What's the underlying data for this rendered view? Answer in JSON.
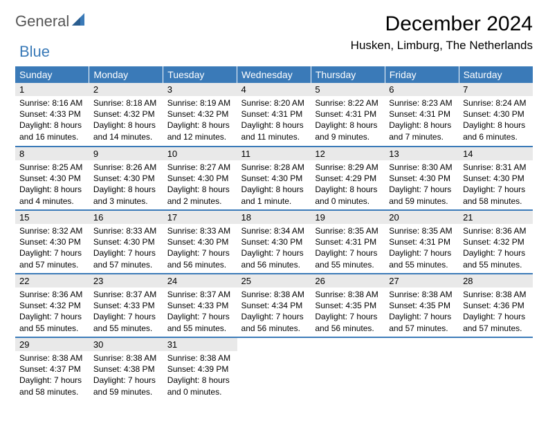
{
  "brand": {
    "part1": "General",
    "part2": "Blue"
  },
  "title": "December 2024",
  "location": "Husken, Limburg, The Netherlands",
  "colors": {
    "header_bg": "#3a7ab8",
    "header_fg": "#ffffff",
    "daynum_bg": "#e9e9e9",
    "border": "#3a7ab8",
    "page_bg": "#ffffff",
    "text": "#000000",
    "logo_gray": "#555555",
    "logo_blue": "#3a7ab8"
  },
  "typography": {
    "title_fontsize": 30,
    "location_fontsize": 17,
    "weekday_fontsize": 14,
    "daynum_fontsize": 13,
    "body_fontsize": 12
  },
  "weekdays": [
    "Sunday",
    "Monday",
    "Tuesday",
    "Wednesday",
    "Thursday",
    "Friday",
    "Saturday"
  ],
  "weeks": [
    [
      {
        "n": "1",
        "sunrise": "8:16 AM",
        "sunset": "4:33 PM",
        "dl": "8 hours and 16 minutes."
      },
      {
        "n": "2",
        "sunrise": "8:18 AM",
        "sunset": "4:32 PM",
        "dl": "8 hours and 14 minutes."
      },
      {
        "n": "3",
        "sunrise": "8:19 AM",
        "sunset": "4:32 PM",
        "dl": "8 hours and 12 minutes."
      },
      {
        "n": "4",
        "sunrise": "8:20 AM",
        "sunset": "4:31 PM",
        "dl": "8 hours and 11 minutes."
      },
      {
        "n": "5",
        "sunrise": "8:22 AM",
        "sunset": "4:31 PM",
        "dl": "8 hours and 9 minutes."
      },
      {
        "n": "6",
        "sunrise": "8:23 AM",
        "sunset": "4:31 PM",
        "dl": "8 hours and 7 minutes."
      },
      {
        "n": "7",
        "sunrise": "8:24 AM",
        "sunset": "4:30 PM",
        "dl": "8 hours and 6 minutes."
      }
    ],
    [
      {
        "n": "8",
        "sunrise": "8:25 AM",
        "sunset": "4:30 PM",
        "dl": "8 hours and 4 minutes."
      },
      {
        "n": "9",
        "sunrise": "8:26 AM",
        "sunset": "4:30 PM",
        "dl": "8 hours and 3 minutes."
      },
      {
        "n": "10",
        "sunrise": "8:27 AM",
        "sunset": "4:30 PM",
        "dl": "8 hours and 2 minutes."
      },
      {
        "n": "11",
        "sunrise": "8:28 AM",
        "sunset": "4:30 PM",
        "dl": "8 hours and 1 minute."
      },
      {
        "n": "12",
        "sunrise": "8:29 AM",
        "sunset": "4:29 PM",
        "dl": "8 hours and 0 minutes."
      },
      {
        "n": "13",
        "sunrise": "8:30 AM",
        "sunset": "4:30 PM",
        "dl": "7 hours and 59 minutes."
      },
      {
        "n": "14",
        "sunrise": "8:31 AM",
        "sunset": "4:30 PM",
        "dl": "7 hours and 58 minutes."
      }
    ],
    [
      {
        "n": "15",
        "sunrise": "8:32 AM",
        "sunset": "4:30 PM",
        "dl": "7 hours and 57 minutes."
      },
      {
        "n": "16",
        "sunrise": "8:33 AM",
        "sunset": "4:30 PM",
        "dl": "7 hours and 57 minutes."
      },
      {
        "n": "17",
        "sunrise": "8:33 AM",
        "sunset": "4:30 PM",
        "dl": "7 hours and 56 minutes."
      },
      {
        "n": "18",
        "sunrise": "8:34 AM",
        "sunset": "4:30 PM",
        "dl": "7 hours and 56 minutes."
      },
      {
        "n": "19",
        "sunrise": "8:35 AM",
        "sunset": "4:31 PM",
        "dl": "7 hours and 55 minutes."
      },
      {
        "n": "20",
        "sunrise": "8:35 AM",
        "sunset": "4:31 PM",
        "dl": "7 hours and 55 minutes."
      },
      {
        "n": "21",
        "sunrise": "8:36 AM",
        "sunset": "4:32 PM",
        "dl": "7 hours and 55 minutes."
      }
    ],
    [
      {
        "n": "22",
        "sunrise": "8:36 AM",
        "sunset": "4:32 PM",
        "dl": "7 hours and 55 minutes."
      },
      {
        "n": "23",
        "sunrise": "8:37 AM",
        "sunset": "4:33 PM",
        "dl": "7 hours and 55 minutes."
      },
      {
        "n": "24",
        "sunrise": "8:37 AM",
        "sunset": "4:33 PM",
        "dl": "7 hours and 55 minutes."
      },
      {
        "n": "25",
        "sunrise": "8:38 AM",
        "sunset": "4:34 PM",
        "dl": "7 hours and 56 minutes."
      },
      {
        "n": "26",
        "sunrise": "8:38 AM",
        "sunset": "4:35 PM",
        "dl": "7 hours and 56 minutes."
      },
      {
        "n": "27",
        "sunrise": "8:38 AM",
        "sunset": "4:35 PM",
        "dl": "7 hours and 57 minutes."
      },
      {
        "n": "28",
        "sunrise": "8:38 AM",
        "sunset": "4:36 PM",
        "dl": "7 hours and 57 minutes."
      }
    ],
    [
      {
        "n": "29",
        "sunrise": "8:38 AM",
        "sunset": "4:37 PM",
        "dl": "7 hours and 58 minutes."
      },
      {
        "n": "30",
        "sunrise": "8:38 AM",
        "sunset": "4:38 PM",
        "dl": "7 hours and 59 minutes."
      },
      {
        "n": "31",
        "sunrise": "8:38 AM",
        "sunset": "4:39 PM",
        "dl": "8 hours and 0 minutes."
      },
      null,
      null,
      null,
      null
    ]
  ],
  "labels": {
    "sunrise": "Sunrise: ",
    "sunset": "Sunset: ",
    "daylight": "Daylight: "
  }
}
